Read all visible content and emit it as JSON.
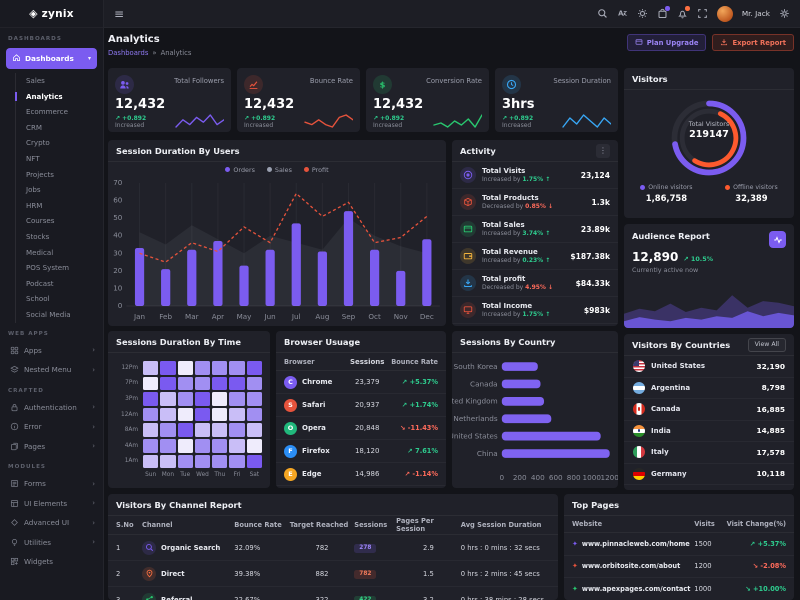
{
  "brand": {
    "name": "zynix"
  },
  "topnav": {
    "user": "Mr. Jack"
  },
  "header": {
    "title": "Analytics",
    "breadcrumb_parent": "Dashboards",
    "breadcrumb_sep": "»",
    "breadcrumb_current": "Analytics",
    "plan_button": "Plan Upgrade",
    "export_button": "Export Report"
  },
  "sidebar": {
    "section_label": "DASHBOARDS",
    "dashboards_label": "Dashboards",
    "sub_items": [
      {
        "label": "Sales"
      },
      {
        "label": "Analytics",
        "active": true
      },
      {
        "label": "Ecommerce"
      },
      {
        "label": "CRM"
      },
      {
        "label": "Crypto"
      },
      {
        "label": "NFT"
      },
      {
        "label": "Projects"
      },
      {
        "label": "Jobs"
      },
      {
        "label": "HRM"
      },
      {
        "label": "Courses"
      },
      {
        "label": "Stocks"
      },
      {
        "label": "Medical"
      },
      {
        "label": "POS System"
      },
      {
        "label": "Podcast"
      },
      {
        "label": "School"
      },
      {
        "label": "Social Media"
      }
    ],
    "groups": [
      {
        "label": "WEB APPS",
        "items": [
          {
            "label": "Apps",
            "icon": "grid",
            "arrow": true
          },
          {
            "label": "Nested Menu",
            "icon": "layers",
            "arrow": true
          }
        ]
      },
      {
        "label": "CRAFTED",
        "items": [
          {
            "label": "Authentication",
            "icon": "lock",
            "arrow": true
          },
          {
            "label": "Error",
            "icon": "info",
            "arrow": true
          },
          {
            "label": "Pages",
            "icon": "pages",
            "arrow": true
          }
        ]
      },
      {
        "label": "MODULES",
        "items": [
          {
            "label": "Forms",
            "icon": "form",
            "arrow": true
          },
          {
            "label": "UI Elements",
            "icon": "ui",
            "arrow": true
          },
          {
            "label": "Advanced UI",
            "icon": "adv",
            "arrow": true
          },
          {
            "label": "Utilities",
            "icon": "util",
            "arrow": true
          },
          {
            "label": "Widgets",
            "icon": "widget",
            "arrow": false
          }
        ]
      }
    ]
  },
  "stat_cards": [
    {
      "label": "Total Followers",
      "value": "12,432",
      "arrow": "↗",
      "change": "+0.892",
      "change_text": "Increased",
      "icon": "users",
      "accent": "#7b5cf0",
      "spark": [
        3,
        6,
        4,
        7,
        5,
        8,
        4,
        6
      ]
    },
    {
      "label": "Bounce Rate",
      "value": "12,432",
      "arrow": "↗",
      "change": "+0.892",
      "change_text": "Increased",
      "icon": "chart",
      "accent": "#e6533c",
      "spark": [
        5,
        4,
        6,
        4,
        3,
        7,
        8,
        6
      ]
    },
    {
      "label": "Conversion Rate",
      "value": "12,432",
      "arrow": "↗",
      "change": "+0.892",
      "change_text": "Increased",
      "icon": "dollar",
      "accent": "#29c76f",
      "spark": [
        4,
        5,
        3,
        6,
        4,
        7,
        3,
        9
      ]
    },
    {
      "label": "Session Duration",
      "value": "3hrs",
      "arrow": "↗",
      "change": "+0.892",
      "change_text": "Increased",
      "icon": "clock",
      "accent": "#38a7f5",
      "spark": [
        4,
        7,
        5,
        8,
        6,
        4,
        7,
        5
      ]
    }
  ],
  "chart_data": [
    {
      "id": "session_duration_by_users",
      "type": "bar",
      "title": "Session Duration By Users",
      "categories": [
        "Jan",
        "Feb",
        "Mar",
        "Apr",
        "May",
        "Jun",
        "Jul",
        "Aug",
        "Sep",
        "Oct",
        "Nov",
        "Dec"
      ],
      "series": [
        {
          "name": "Orders",
          "type": "bar",
          "color": "#7b5cf0",
          "values": [
            33,
            21,
            32,
            37,
            23,
            32,
            47,
            31,
            54,
            32,
            20,
            38
          ]
        },
        {
          "name": "Sales",
          "type": "area",
          "color": "#9aa0b0",
          "values": [
            42,
            35,
            46,
            38,
            30,
            40,
            36,
            32,
            50,
            40,
            34,
            30
          ]
        },
        {
          "name": "Profit",
          "type": "line",
          "dashed": true,
          "color": "#e6533c",
          "values": [
            30,
            25,
            36,
            31,
            45,
            36,
            64,
            51,
            59,
            36,
            39,
            51
          ]
        }
      ],
      "ylim": [
        0,
        70
      ],
      "yticks": [
        0,
        10,
        20,
        30,
        40,
        50,
        60,
        70
      ],
      "grid": "vertical",
      "legend_position": "top"
    },
    {
      "id": "visitors_donut",
      "type": "pie",
      "title": "Visitors",
      "center_label": "Total Visitors",
      "center_value": "219147",
      "slices": [
        {
          "name": "Online visitors",
          "value": 186758,
          "display": "1,86,758",
          "color": "#7b5cf0"
        },
        {
          "name": "Offline visitors",
          "value": 32389,
          "display": "32,389",
          "color": "#fd5a2e"
        }
      ],
      "legend_position": "bottom"
    },
    {
      "id": "audience_report",
      "type": "area",
      "title": "Audience Report",
      "value": "12,890",
      "change_arrow": "↗",
      "change": "10.5%",
      "subtitle": "Currently active now",
      "series": [
        {
          "name": "back",
          "color": "#3c3468",
          "values": [
            34,
            46,
            40,
            58,
            38,
            48,
            42,
            78,
            48,
            64,
            60,
            52
          ]
        },
        {
          "name": "front",
          "color": "#6a57d9",
          "values": [
            16,
            26,
            20,
            16,
            24,
            20,
            28,
            24,
            40,
            28,
            36,
            30
          ]
        }
      ]
    },
    {
      "id": "sessions_duration_by_time",
      "type": "heatmap",
      "title": "Sessions Duration By Time",
      "rows": [
        "12Pm",
        "7Pm",
        "3Pm",
        "12Am",
        "8Am",
        "4Am",
        "1Am"
      ],
      "cols": [
        "Sun",
        "Mon",
        "Tue",
        "Wed",
        "Thu",
        "Fri",
        "Sat"
      ],
      "palette": [
        "#efecfc",
        "#c9bef7",
        "#a18ff2",
        "#7a5af0"
      ],
      "matrix": [
        [
          1,
          3,
          0,
          2,
          2,
          2,
          3
        ],
        [
          0,
          3,
          2,
          2,
          3,
          3,
          2
        ],
        [
          3,
          1,
          2,
          3,
          0,
          2,
          2
        ],
        [
          2,
          1,
          0,
          3,
          0,
          1,
          2
        ],
        [
          1,
          2,
          3,
          1,
          1,
          2,
          1
        ],
        [
          2,
          2,
          0,
          2,
          2,
          1,
          0
        ],
        [
          1,
          1,
          2,
          2,
          2,
          2,
          3
        ]
      ]
    },
    {
      "id": "sessions_by_country",
      "type": "bar",
      "orientation": "horizontal",
      "title": "Sessions By Country",
      "categories": [
        "South Korea",
        "Canada",
        "United Kingdom",
        "Netherlands",
        "United States",
        "China"
      ],
      "values": [
        400,
        430,
        470,
        550,
        1100,
        1200
      ],
      "xticks": [
        0,
        200,
        400,
        600,
        800,
        1000,
        1200
      ],
      "xlim": [
        0,
        1200
      ],
      "color": "#7f63f1"
    }
  ],
  "activity": {
    "title": "Activity",
    "rows": [
      {
        "label": "Total Visits",
        "dir": "Increased by",
        "pct": "1.75%",
        "arrow": "↑",
        "up": true,
        "value": "23,124",
        "icon": "disc",
        "color": "#7b5cf0"
      },
      {
        "label": "Total Products",
        "dir": "Decreased by",
        "pct": "0.85%",
        "arrow": "↓",
        "up": false,
        "value": "1.3k",
        "icon": "box",
        "color": "#e6533c"
      },
      {
        "label": "Total Sales",
        "dir": "Increased by",
        "pct": "3.74%",
        "arrow": "↑",
        "up": true,
        "value": "23.89k",
        "icon": "card",
        "color": "#29c76f"
      },
      {
        "label": "Total Revenue",
        "dir": "Increased by",
        "pct": "0.23%",
        "arrow": "↑",
        "up": true,
        "value": "$187.38k",
        "icon": "wallet",
        "color": "#f2b33d"
      },
      {
        "label": "Total profit",
        "dir": "Decreased by",
        "pct": "4.95%",
        "arrow": "↓",
        "up": false,
        "value": "$84.33k",
        "icon": "download",
        "color": "#38a7f5"
      },
      {
        "label": "Total Income",
        "dir": "Increased by",
        "pct": "1.75%",
        "arrow": "↑",
        "up": true,
        "value": "$983k",
        "icon": "monitor",
        "color": "#e6533c"
      }
    ]
  },
  "browser_usage": {
    "title": "Browser Usuage",
    "headers": [
      "Browser",
      "Sessions",
      "Bounce Rate"
    ],
    "rows": [
      {
        "name": "Chrome",
        "initial": "C",
        "color": "#7b5cf0",
        "sessions": "23,379",
        "arrow": "↗",
        "change": "+5.37%",
        "up": true
      },
      {
        "name": "Safari",
        "initial": "S",
        "color": "#e6533c",
        "sessions": "20,937",
        "arrow": "↗",
        "change": "+1.74%",
        "up": true
      },
      {
        "name": "Opera",
        "initial": "O",
        "color": "#21b87c",
        "sessions": "20,848",
        "arrow": "↘",
        "change": "-11.43%",
        "up": false
      },
      {
        "name": "Firefox",
        "initial": "F",
        "color": "#2b8ef5",
        "sessions": "18,120",
        "arrow": "↗",
        "change": "7.61%",
        "up": true
      },
      {
        "name": "Edge",
        "initial": "E",
        "color": "#f5a623",
        "sessions": "14,986",
        "arrow": "↗",
        "change": "-1.14%",
        "up": false
      }
    ]
  },
  "visitors_by_countries": {
    "title": "Visitors By Countries",
    "action": "View All",
    "rows": [
      {
        "name": "United States",
        "flag": "us",
        "value": "32,190"
      },
      {
        "name": "Argentina",
        "flag": "ar",
        "value": "8,798"
      },
      {
        "name": "Canada",
        "flag": "ca",
        "value": "16,885"
      },
      {
        "name": "India",
        "flag": "in",
        "value": "14,885"
      },
      {
        "name": "Italy",
        "flag": "it",
        "value": "17,578"
      },
      {
        "name": "Germany",
        "flag": "de",
        "value": "10,118"
      }
    ]
  },
  "channel_report": {
    "title": "Visitors By Channel Report",
    "headers": [
      "S.No",
      "Channel",
      "Bounce Rate",
      "Target Reached",
      "Sessions",
      "Pages Per Session",
      "Avg Session Duration"
    ],
    "rows": [
      {
        "sno": "1",
        "channel": "Organic Search",
        "icon": "search",
        "color": "#7b5cf0",
        "bounce": "32.09%",
        "target": "782",
        "sessions": "278",
        "badge": "purple",
        "pps": "2.9",
        "avg": "0 hrs : 0 mins : 32 secs"
      },
      {
        "sno": "2",
        "channel": "Direct",
        "icon": "pin",
        "color": "#fd7041",
        "bounce": "39.38%",
        "target": "882",
        "sessions": "782",
        "badge": "orange",
        "pps": "1.5",
        "avg": "0 hrs : 2 mins : 45 secs"
      },
      {
        "sno": "3",
        "channel": "Referral",
        "icon": "share",
        "color": "#29c76f",
        "bounce": "22.67%",
        "target": "322",
        "sessions": "422",
        "badge": "green",
        "pps": "3.2",
        "avg": "0 hrs : 38 mins : 28 secs"
      }
    ]
  },
  "top_pages": {
    "title": "Top Pages",
    "headers": [
      "Website",
      "Visits",
      "Visit Change(%)"
    ],
    "rows": [
      {
        "site": "www.pinnacleweb.com/home",
        "dot_color": "#7b5cf0",
        "visits": "1500",
        "arrow": "↗",
        "change": "+5.37%",
        "up": true
      },
      {
        "site": "www.orbitosite.com/about",
        "dot_color": "#e6533c",
        "visits": "1200",
        "arrow": "↘",
        "change": "-2.08%",
        "up": false
      },
      {
        "site": "www.apexpages.com/contact",
        "dot_color": "#29c76f",
        "visits": "1000",
        "arrow": "↘",
        "change": "+10.00%",
        "up": true
      }
    ]
  }
}
